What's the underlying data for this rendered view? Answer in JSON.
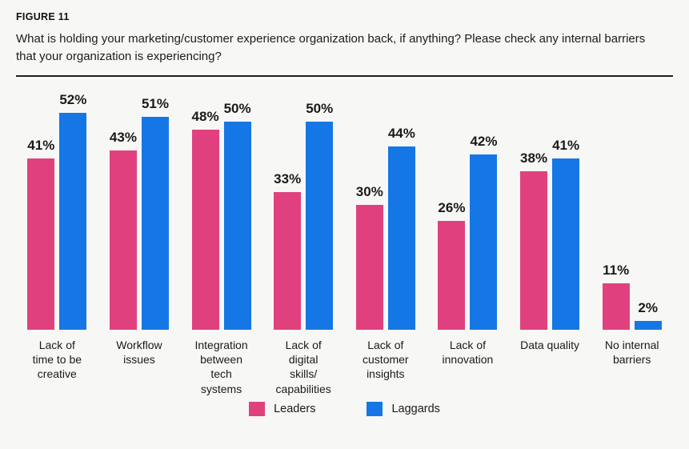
{
  "figure": {
    "label": "FIGURE 11",
    "question": "What is holding your marketing/customer experience organization back, if anything? Please check any internal barriers that your organization is experiencing?"
  },
  "chart_data": {
    "type": "bar",
    "title": "FIGURE 11",
    "subtitle": "What is holding your marketing/customer experience organization back, if anything? Please check any internal barriers that your organization is experiencing?",
    "categories": [
      "Lack of\ntime to be\ncreative",
      "Workflow\nissues",
      "Integration\nbetween\ntech\nsystems",
      "Lack of\ndigital\nskills/\ncapabilities",
      "Lack of\ncustomer\ninsights",
      "Lack of\ninnovation",
      "Data quality",
      "No internal\nbarriers"
    ],
    "series": [
      {
        "name": "Leaders",
        "color": "#e0417e",
        "values": [
          41,
          43,
          48,
          33,
          30,
          26,
          38,
          11
        ]
      },
      {
        "name": "Laggards",
        "color": "#1577e5",
        "values": [
          52,
          51,
          50,
          50,
          44,
          42,
          41,
          2
        ]
      }
    ],
    "value_suffix": "%",
    "xlabel": "",
    "ylabel": "",
    "ylim": [
      0,
      55
    ],
    "grid": false,
    "legend_position": "bottom",
    "value_labels": "above-bars"
  }
}
